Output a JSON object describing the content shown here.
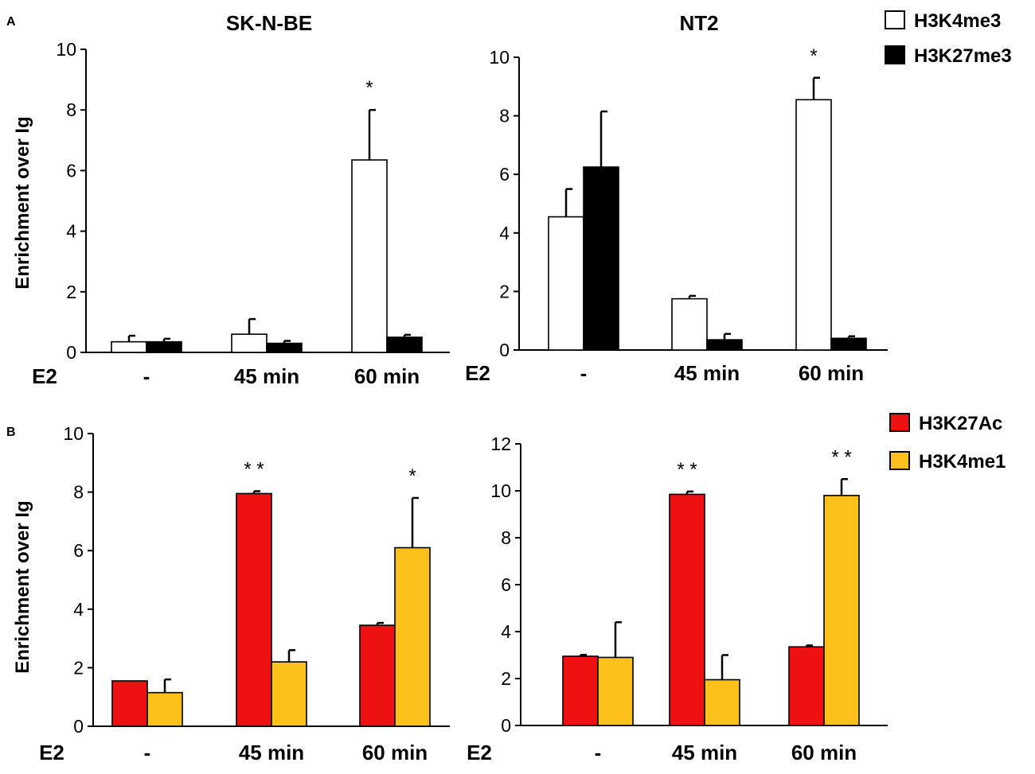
{
  "panels": {
    "a_label": "A",
    "b_label": "B"
  },
  "chart_data": [
    {
      "id": "skn-top",
      "type": "bar",
      "title": "SK-N-BE",
      "ylabel": "Enrichment over Ig",
      "xprefix": "E2",
      "categories": [
        "-",
        "45 min",
        "60 min"
      ],
      "ylim": [
        0,
        10
      ],
      "yticks": [
        0,
        2,
        4,
        6,
        8,
        10
      ],
      "series": [
        {
          "name": "H3K4me3",
          "color": "#ffffff",
          "values": [
            0.35,
            0.6,
            6.35
          ],
          "errors": [
            0.2,
            0.5,
            1.65
          ]
        },
        {
          "name": "H3K27me3",
          "color": "#000000",
          "values": [
            0.35,
            0.3,
            0.5
          ],
          "errors": [
            0.1,
            0.08,
            0.08
          ]
        }
      ],
      "annotations": [
        {
          "category": 2,
          "series": 0,
          "text": "*"
        }
      ]
    },
    {
      "id": "nt2-top",
      "type": "bar",
      "title": "NT2",
      "ylabel": "",
      "xprefix": "E2",
      "categories": [
        "-",
        "45 min",
        "60 min"
      ],
      "ylim": [
        0,
        10
      ],
      "yticks": [
        0,
        2,
        4,
        6,
        8,
        10
      ],
      "series": [
        {
          "name": "H3K4me3",
          "color": "#ffffff",
          "values": [
            4.55,
            1.75,
            8.55
          ],
          "errors": [
            0.95,
            0.1,
            0.75
          ]
        },
        {
          "name": "H3K27me3",
          "color": "#000000",
          "values": [
            6.25,
            0.35,
            0.4
          ],
          "errors": [
            1.9,
            0.2,
            0.07
          ]
        }
      ],
      "annotations": [
        {
          "category": 2,
          "series": 0,
          "text": "*"
        }
      ],
      "legend": {
        "position": "right",
        "items": [
          "H3K4me3",
          "H3K27me3"
        ]
      }
    },
    {
      "id": "skn-bottom",
      "type": "bar",
      "title": "",
      "ylabel": "Enrichment over Ig",
      "xprefix": "E2",
      "categories": [
        "-",
        "45 min",
        "60 min"
      ],
      "ylim": [
        0,
        10
      ],
      "yticks": [
        0,
        2,
        4,
        6,
        8,
        10
      ],
      "series": [
        {
          "name": "H3K27Ac",
          "color": "#ee1111",
          "values": [
            1.55,
            7.95,
            3.45
          ],
          "errors": [
            0.0,
            0.08,
            0.08
          ]
        },
        {
          "name": "H3K4me1",
          "color": "#fcc21b",
          "values": [
            1.15,
            2.2,
            6.1
          ],
          "errors": [
            0.45,
            0.4,
            1.7
          ]
        }
      ],
      "annotations": [
        {
          "category": 1,
          "series": 0,
          "text": "* *"
        },
        {
          "category": 2,
          "series": 1,
          "text": "*"
        }
      ]
    },
    {
      "id": "nt2-bottom",
      "type": "bar",
      "title": "",
      "ylabel": "",
      "xprefix": "E2",
      "categories": [
        "-",
        "45 min",
        "60 min"
      ],
      "ylim": [
        0,
        12
      ],
      "yticks": [
        0,
        2,
        4,
        6,
        8,
        10,
        12
      ],
      "series": [
        {
          "name": "H3K27Ac",
          "color": "#ee1111",
          "values": [
            2.95,
            9.85,
            3.35
          ],
          "errors": [
            0.06,
            0.12,
            0.06
          ]
        },
        {
          "name": "H3K4me1",
          "color": "#fcc21b",
          "values": [
            2.9,
            1.95,
            9.8
          ],
          "errors": [
            1.5,
            1.05,
            0.7
          ]
        }
      ],
      "annotations": [
        {
          "category": 1,
          "series": 0,
          "text": "* *"
        },
        {
          "category": 2,
          "series": 1,
          "text": "* *"
        }
      ],
      "legend": {
        "position": "right",
        "items": [
          "H3K27Ac",
          "H3K4me1"
        ]
      }
    }
  ]
}
